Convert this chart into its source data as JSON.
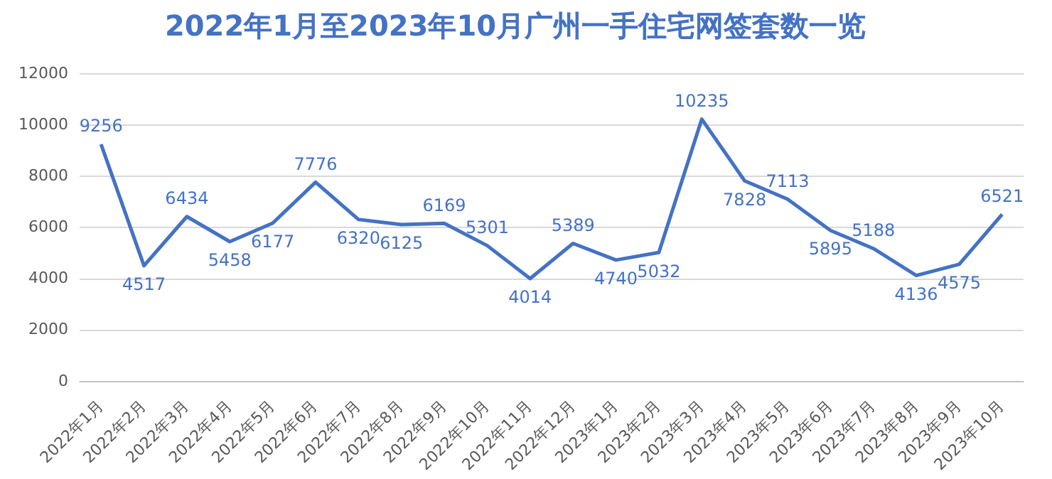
{
  "chart_data": {
    "type": "line",
    "title": "2022年1月至2023年10月广州一手住宅网签套数一览",
    "categories": [
      "2022年1月",
      "2022年2月",
      "2022年3月",
      "2022年4月",
      "2022年5月",
      "2022年6月",
      "2022年7月",
      "2022年8月",
      "2022年9月",
      "2022年10月",
      "2022年11月",
      "2022年12月",
      "2023年1月",
      "2023年2月",
      "2023年3月",
      "2023年4月",
      "2023年5月",
      "2023年6月",
      "2023年7月",
      "2023年8月",
      "2023年9月",
      "2023年10月"
    ],
    "series": [
      {
        "color": "#4472c4",
        "values": [
          9256,
          4517,
          6434,
          5458,
          6177,
          7776,
          6320,
          6125,
          6169,
          5301,
          4014,
          5389,
          4740,
          5032,
          10235,
          7828,
          7113,
          5895,
          5188,
          4136,
          4575,
          6521
        ]
      }
    ],
    "ylim": [
      0,
      12000
    ],
    "yticks": [
      0,
      2000,
      4000,
      6000,
      8000,
      10000,
      12000
    ],
    "grid": "y",
    "legend": false,
    "marker": "none",
    "line_style": "solid",
    "data_labels": true
  }
}
